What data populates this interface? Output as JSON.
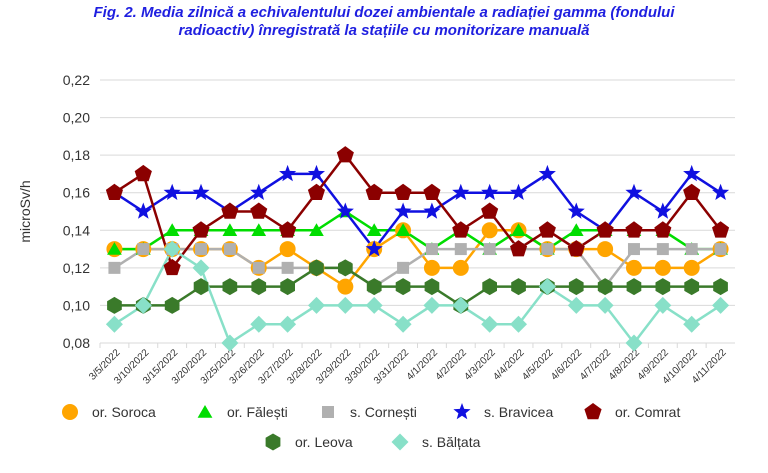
{
  "chart_data": {
    "type": "line",
    "title": "Fig. 2. Media zilnică a echivalentului dozei ambientale a radiației gamma (fondului radioactiv) înregistrată la stațiile cu monitorizare manuală",
    "title_lines": [
      "Fig. 2. Media zilnică a echivalentului dozei ambientale a radiației gamma (fondului",
      "radioactiv) înregistrată la stațiile cu monitorizare manuală"
    ],
    "ylabel": "microSv/h",
    "xlabel": "",
    "ylim": [
      0.08,
      0.22
    ],
    "yticks": [
      "0,08",
      "0,10",
      "0,12",
      "0,14",
      "0,16",
      "0,18",
      "0,20",
      "0,22"
    ],
    "categories": [
      "3/5/2022",
      "3/10/2022",
      "3/15/2022",
      "3/20/2022",
      "3/25/2022",
      "3/26/2022",
      "3/27/2022",
      "3/28/2022",
      "3/29/2022",
      "3/30/2022",
      "3/31/2022",
      "4/1/2022",
      "4/2/2022",
      "4/3/2022",
      "4/4/2022",
      "4/5/2022",
      "4/6/2022",
      "4/7/2022",
      "4/8/2022",
      "4/9/2022",
      "4/10/2022",
      "4/11/2022"
    ],
    "grid": true,
    "legend_position": "bottom",
    "series": [
      {
        "name": "or. Soroca",
        "color": "#ffa500",
        "marker": "circle",
        "values": [
          0.13,
          0.13,
          0.13,
          0.13,
          0.13,
          0.12,
          0.13,
          0.12,
          0.11,
          0.13,
          0.14,
          0.12,
          0.12,
          0.14,
          0.14,
          0.13,
          0.13,
          0.13,
          0.12,
          0.12,
          0.12,
          0.13
        ]
      },
      {
        "name": "or. Fălești",
        "color": "#00dd00",
        "marker": "triangle",
        "values": [
          0.13,
          0.13,
          0.14,
          0.14,
          0.14,
          0.14,
          0.14,
          0.14,
          0.15,
          0.14,
          0.14,
          0.13,
          0.14,
          0.13,
          0.14,
          0.13,
          0.14,
          0.14,
          0.14,
          0.14,
          0.13,
          0.13
        ]
      },
      {
        "name": "s. Cornești",
        "color": "#b0b0b0",
        "marker": "square",
        "values": [
          0.12,
          0.13,
          0.13,
          0.13,
          0.13,
          0.12,
          0.12,
          0.12,
          0.12,
          0.11,
          0.12,
          0.13,
          0.13,
          0.13,
          0.13,
          0.13,
          0.13,
          0.11,
          0.13,
          0.13,
          0.13,
          0.13
        ]
      },
      {
        "name": "s. Bravicea",
        "color": "#1010e0",
        "marker": "star",
        "values": [
          0.16,
          0.15,
          0.16,
          0.16,
          0.15,
          0.16,
          0.17,
          0.17,
          0.15,
          0.13,
          0.15,
          0.15,
          0.16,
          0.16,
          0.16,
          0.17,
          0.15,
          0.14,
          0.16,
          0.15,
          0.17,
          0.16
        ]
      },
      {
        "name": "or. Comrat",
        "color": "#8b0000",
        "marker": "pentagon",
        "values": [
          0.16,
          0.17,
          0.12,
          0.14,
          0.15,
          0.15,
          0.14,
          0.16,
          0.18,
          0.16,
          0.16,
          0.16,
          0.14,
          0.15,
          0.13,
          0.14,
          0.13,
          0.14,
          0.14,
          0.14,
          0.16,
          0.14
        ]
      },
      {
        "name": "or. Leova",
        "color": "#3a7a2a",
        "marker": "hexagon",
        "values": [
          0.1,
          0.1,
          0.1,
          0.11,
          0.11,
          0.11,
          0.11,
          0.12,
          0.12,
          0.11,
          0.11,
          0.11,
          0.1,
          0.11,
          0.11,
          0.11,
          0.11,
          0.11,
          0.11,
          0.11,
          0.11,
          0.11
        ]
      },
      {
        "name": "s. Bălțata",
        "color": "#88e0c8",
        "marker": "diamond",
        "values": [
          0.09,
          0.1,
          0.13,
          0.12,
          0.08,
          0.09,
          0.09,
          0.1,
          0.1,
          0.1,
          0.09,
          0.1,
          0.1,
          0.09,
          0.09,
          0.11,
          0.1,
          0.1,
          0.08,
          0.1,
          0.09,
          0.1
        ]
      }
    ]
  }
}
